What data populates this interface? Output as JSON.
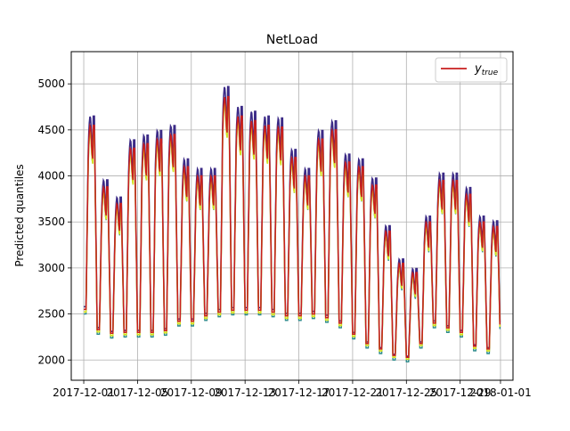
{
  "chart_data": {
    "type": "line",
    "title": "NetLoad",
    "xlabel": "",
    "ylabel": "Predicted quantiles",
    "x_range": [
      "2017-12-01",
      "2018-01-01"
    ],
    "ylim": [
      1780,
      5350
    ],
    "grid": true,
    "legend": {
      "placement": "top-right",
      "entries": [
        "y_true"
      ],
      "label_main": "y",
      "label_sub": "true"
    },
    "x_ticks": [
      "2017-12-01",
      "2017-12-05",
      "2017-12-09",
      "2017-12-13",
      "2017-12-17",
      "2017-12-21",
      "2017-12-25",
      "2017-12-29",
      "2018-01-01"
    ],
    "y_ticks": [
      "2000",
      "2500",
      "3000",
      "3500",
      "4000",
      "4500",
      "5000"
    ],
    "series": [
      {
        "name": "y_true",
        "color": "#c81e1e",
        "daily": [
          {
            "date": "2017-12-01",
            "min": 2550,
            "max": 4550
          },
          {
            "date": "2017-12-02",
            "min": 2330,
            "max": 3880
          },
          {
            "date": "2017-12-03",
            "min": 2290,
            "max": 3700
          },
          {
            "date": "2017-12-04",
            "min": 2300,
            "max": 4300
          },
          {
            "date": "2017-12-05",
            "min": 2300,
            "max": 4350
          },
          {
            "date": "2017-12-06",
            "min": 2300,
            "max": 4400
          },
          {
            "date": "2017-12-07",
            "min": 2320,
            "max": 4450
          },
          {
            "date": "2017-12-08",
            "min": 2420,
            "max": 4100
          },
          {
            "date": "2017-12-09",
            "min": 2420,
            "max": 4000
          },
          {
            "date": "2017-12-10",
            "min": 2480,
            "max": 4000
          },
          {
            "date": "2017-12-11",
            "min": 2520,
            "max": 4860
          },
          {
            "date": "2017-12-12",
            "min": 2540,
            "max": 4650
          },
          {
            "date": "2017-12-13",
            "min": 2540,
            "max": 4600
          },
          {
            "date": "2017-12-14",
            "min": 2540,
            "max": 4550
          },
          {
            "date": "2017-12-15",
            "min": 2520,
            "max": 4530
          },
          {
            "date": "2017-12-16",
            "min": 2480,
            "max": 4200
          },
          {
            "date": "2017-12-17",
            "min": 2480,
            "max": 4000
          },
          {
            "date": "2017-12-18",
            "min": 2500,
            "max": 4400
          },
          {
            "date": "2017-12-19",
            "min": 2460,
            "max": 4500
          },
          {
            "date": "2017-12-20",
            "min": 2400,
            "max": 4150
          },
          {
            "date": "2017-12-21",
            "min": 2280,
            "max": 4100
          },
          {
            "date": "2017-12-22",
            "min": 2180,
            "max": 3900
          },
          {
            "date": "2017-12-23",
            "min": 2120,
            "max": 3400
          },
          {
            "date": "2017-12-24",
            "min": 2050,
            "max": 3050
          },
          {
            "date": "2017-12-25",
            "min": 2030,
            "max": 2950
          },
          {
            "date": "2017-12-26",
            "min": 2180,
            "max": 3500
          },
          {
            "date": "2017-12-27",
            "min": 2400,
            "max": 3950
          },
          {
            "date": "2017-12-28",
            "min": 2350,
            "max": 3950
          },
          {
            "date": "2017-12-29",
            "min": 2300,
            "max": 3800
          },
          {
            "date": "2017-12-30",
            "min": 2150,
            "max": 3500
          },
          {
            "date": "2017-12-31",
            "min": 2120,
            "max": 3450
          }
        ]
      }
    ]
  }
}
